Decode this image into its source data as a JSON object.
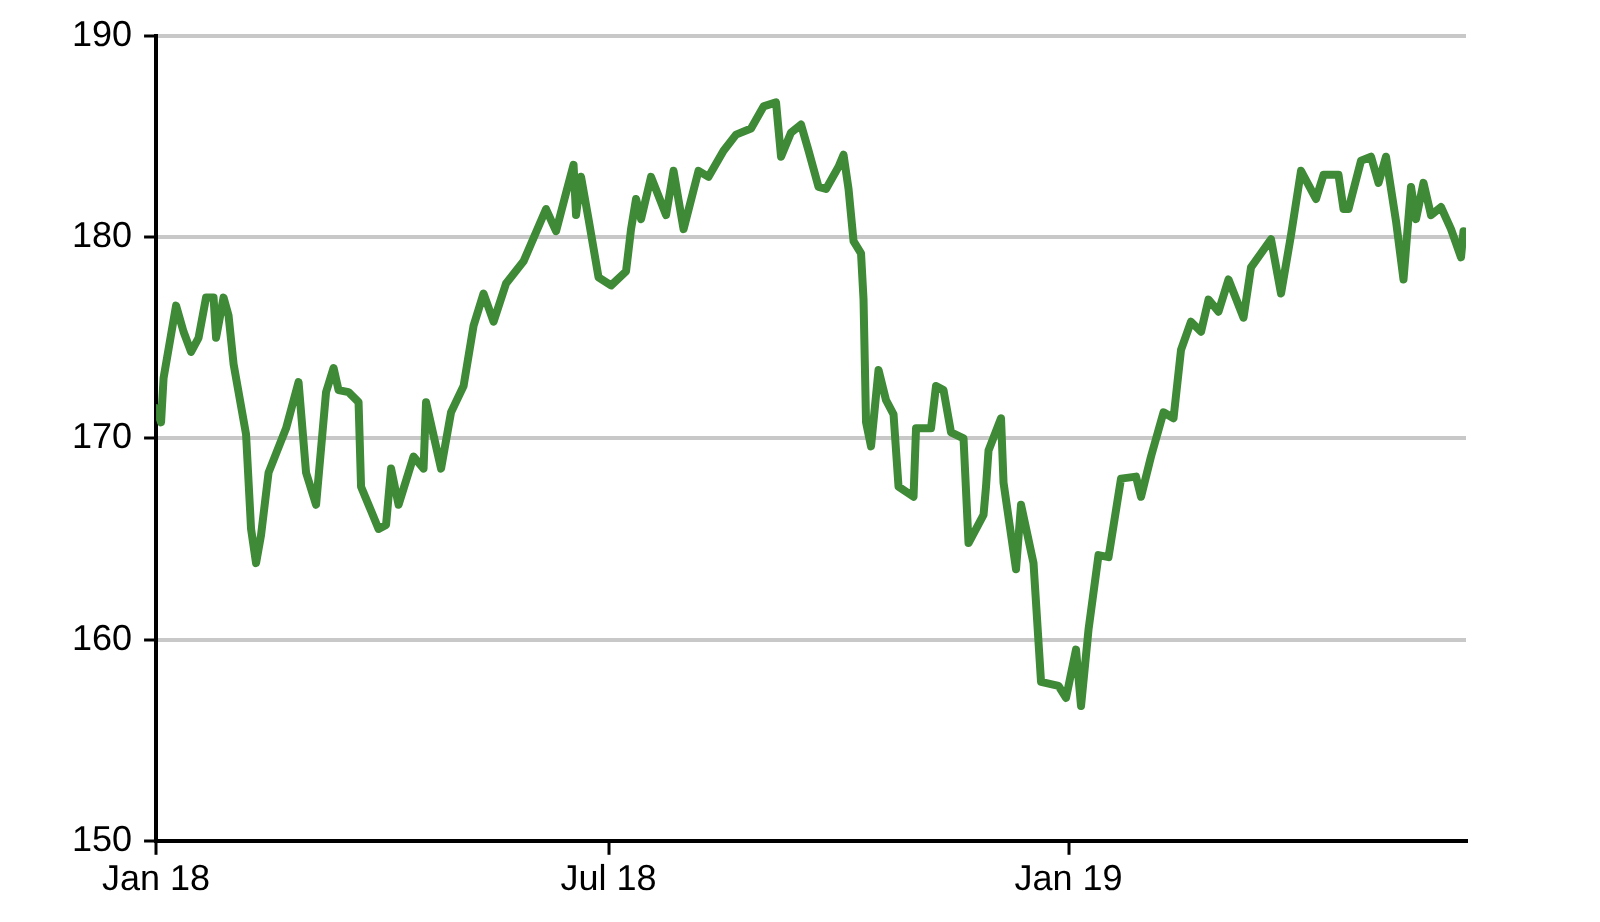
{
  "chart_data": {
    "type": "line",
    "color": "#3e8a37",
    "x": [
      "2018-01-01",
      "2018-01-03",
      "2018-01-04",
      "2018-01-09",
      "2018-01-12",
      "2018-01-15",
      "2018-01-18",
      "2018-01-21",
      "2018-01-24",
      "2018-01-25",
      "2018-01-28",
      "2018-01-30",
      "2018-02-01",
      "2018-02-06",
      "2018-02-08",
      "2018-02-10",
      "2018-02-12",
      "2018-02-15",
      "2018-02-22",
      "2018-02-27",
      "2018-03-02",
      "2018-03-06",
      "2018-03-10",
      "2018-03-13",
      "2018-03-15",
      "2018-03-19",
      "2018-03-23",
      "2018-03-24",
      "2018-03-28",
      "2018-03-31",
      "2018-04-03",
      "2018-04-05",
      "2018-04-08",
      "2018-04-14",
      "2018-04-18",
      "2018-04-19",
      "2018-04-25",
      "2018-04-29",
      "2018-05-04",
      "2018-05-08",
      "2018-05-12",
      "2018-05-16",
      "2018-05-21",
      "2018-05-28",
      "2018-06-06",
      "2018-06-10",
      "2018-06-14",
      "2018-06-17",
      "2018-06-18",
      "2018-06-20",
      "2018-06-23",
      "2018-06-27",
      "2018-07-02",
      "2018-07-08",
      "2018-07-10",
      "2018-07-12",
      "2018-07-14",
      "2018-07-18",
      "2018-07-24",
      "2018-07-27",
      "2018-07-31",
      "2018-08-06",
      "2018-08-10",
      "2018-08-16",
      "2018-08-21",
      "2018-08-27",
      "2018-09-01",
      "2018-09-06",
      "2018-09-08",
      "2018-09-12",
      "2018-09-16",
      "2018-09-19",
      "2018-09-23",
      "2018-09-26",
      "2018-10-01",
      "2018-10-03",
      "2018-10-05",
      "2018-10-07",
      "2018-10-10",
      "2018-10-11",
      "2018-10-12",
      "2018-10-14",
      "2018-10-17",
      "2018-10-20",
      "2018-10-23",
      "2018-10-25",
      "2018-10-31",
      "2018-11-01",
      "2018-11-07",
      "2018-11-09",
      "2018-11-12",
      "2018-11-15",
      "2018-11-20",
      "2018-11-22",
      "2018-11-28",
      "2018-11-29",
      "2018-11-30",
      "2018-12-05",
      "2018-12-06",
      "2018-12-11",
      "2018-12-13",
      "2018-12-18",
      "2018-12-21",
      "2018-12-28",
      "2018-12-31",
      "2019-01-04",
      "2019-01-06",
      "2019-01-09",
      "2019-01-13",
      "2019-01-17",
      "2019-01-22",
      "2019-01-28",
      "2019-01-30",
      "2019-02-03",
      "2019-02-08",
      "2019-02-12",
      "2019-02-15",
      "2019-02-19",
      "2019-02-23",
      "2019-02-26",
      "2019-03-02",
      "2019-03-06",
      "2019-03-12",
      "2019-03-15",
      "2019-03-23",
      "2019-03-27",
      "2019-03-31",
      "2019-04-04",
      "2019-04-10",
      "2019-04-13",
      "2019-04-19",
      "2019-04-21",
      "2019-04-23",
      "2019-04-28",
      "2019-05-02",
      "2019-05-05",
      "2019-05-08",
      "2019-05-12",
      "2019-05-15",
      "2019-05-18",
      "2019-05-20",
      "2019-05-23",
      "2019-05-26",
      "2019-05-30",
      "2019-06-03",
      "2019-06-07",
      "2019-06-08"
    ],
    "values": [
      171.5,
      170.8,
      173,
      176.6,
      175.3,
      174.3,
      175,
      177,
      177,
      175,
      177,
      176.1,
      173.7,
      170.2,
      165.5,
      163.8,
      165.2,
      168.3,
      170.5,
      172.8,
      168.3,
      166.7,
      172.3,
      173.5,
      172.4,
      172.3,
      171.8,
      167.6,
      166.4,
      165.5,
      165.7,
      168.5,
      166.7,
      169.1,
      168.5,
      171.8,
      168.5,
      171.3,
      172.6,
      175.6,
      177.2,
      175.8,
      177.7,
      178.8,
      181.4,
      180.3,
      182.2,
      183.6,
      181.1,
      183,
      180.9,
      178,
      177.6,
      178.3,
      180.4,
      181.9,
      180.9,
      183,
      181.1,
      183.3,
      180.4,
      183.3,
      183,
      184.3,
      185.1,
      185.4,
      186.5,
      186.7,
      184,
      185.2,
      185.6,
      184.3,
      182.5,
      182.4,
      183.5,
      184.1,
      182.4,
      179.8,
      179.2,
      176.9,
      170.8,
      169.6,
      173.4,
      171.9,
      171.2,
      167.6,
      167.1,
      170.5,
      170.5,
      172.6,
      172.4,
      170.3,
      170,
      164.8,
      166.2,
      167.6,
      169.4,
      171,
      167.8,
      163.5,
      166.7,
      163.8,
      157.9,
      157.7,
      157.1,
      159.5,
      156.7,
      160.5,
      164.2,
      164.1,
      168,
      168.1,
      167.1,
      169.1,
      171.3,
      171,
      174.4,
      175.8,
      175.3,
      176.9,
      176.3,
      177.9,
      176,
      178.5,
      179.9,
      177.2,
      180.1,
      183.3,
      181.9,
      183.1,
      183.1,
      181.4,
      181.4,
      183.8,
      184,
      182.7,
      184,
      180.8,
      177.9,
      182.5,
      180.9,
      182.7,
      181.1,
      181.5,
      180.4,
      179,
      180.3
    ],
    "xlim": [
      "2018-01-01",
      "2019-06-09"
    ],
    "xticks": [
      {
        "value": "2018-01",
        "label": "Jan 18"
      },
      {
        "value": "2018-07",
        "label": "Jul 18"
      },
      {
        "value": "2019-01",
        "label": "Jan 19"
      }
    ],
    "ylim": [
      150,
      190
    ],
    "yticks": [
      150,
      160,
      170,
      180,
      190
    ],
    "grid": "y",
    "marker": "none",
    "line_style": "solid",
    "legend": false
  }
}
